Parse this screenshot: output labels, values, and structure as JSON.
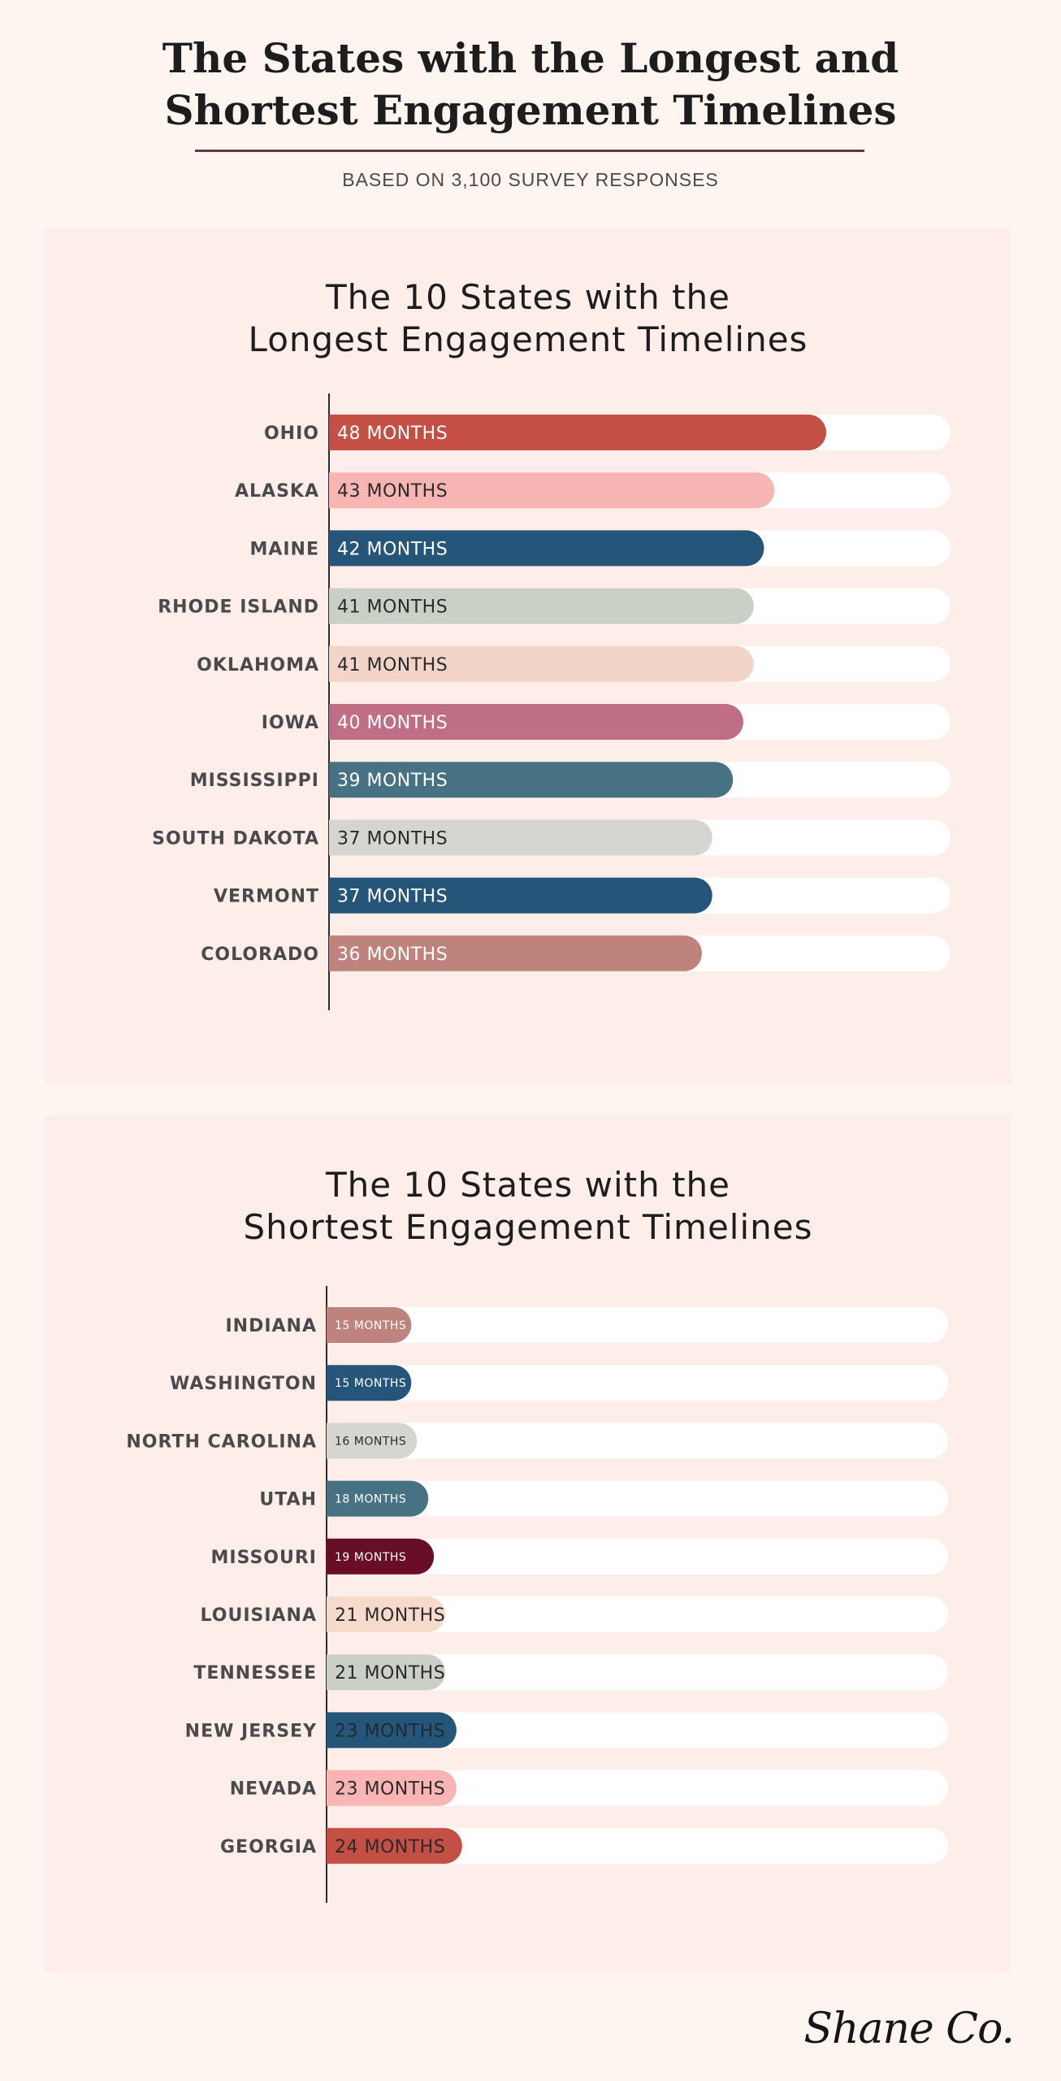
{
  "header": {
    "title_line1": "The States with the Longest and",
    "title_line2": "Shortest Engagement Timelines",
    "subtitle": "BASED ON 3,100 SURVEY RESPONSES"
  },
  "logo": "Shane Co.",
  "chart_data": [
    {
      "type": "bar",
      "orientation": "horizontal",
      "title_line1": "The 10 States with the",
      "title_line2": "Longest Engagement Timelines",
      "categories": [
        "OHIO",
        "ALASKA",
        "MAINE",
        "RHODE ISLAND",
        "OKLAHOMA",
        "IOWA",
        "MISSISSIPPI",
        "SOUTH DAKOTA",
        "VERMONT",
        "COLORADO"
      ],
      "values": [
        48,
        43,
        42,
        41,
        41,
        40,
        39,
        37,
        37,
        36
      ],
      "value_labels": [
        "48 MONTHS",
        "43 MONTHS",
        "42 MONTHS",
        "41 MONTHS",
        "41 MONTHS",
        "40 MONTHS",
        "39 MONTHS",
        "37 MONTHS",
        "37 MONTHS",
        "36 MONTHS"
      ],
      "colors": [
        "#c44f44",
        "#f9b5b3",
        "#255578",
        "#cbd0c7",
        "#f2d5c8",
        "#c06e86",
        "#467283",
        "#d5d6d2",
        "#255578",
        "#bd837c"
      ],
      "label_colors": [
        "#ffffff",
        "#2a2a2a",
        "#ffffff",
        "#2a2a2a",
        "#2a2a2a",
        "#ffffff",
        "#ffffff",
        "#2a2a2a",
        "#ffffff",
        "#ffffff"
      ],
      "xlim": [
        0,
        60
      ],
      "unit": "months"
    },
    {
      "type": "bar",
      "orientation": "horizontal",
      "title_line1": "The 10 States with the",
      "title_line2": "Shortest Engagement Timelines",
      "categories": [
        "INDIANA",
        "WASHINGTON",
        "NORTH CAROLINA",
        "UTAH",
        "MISSOURI",
        "LOUISIANA",
        "TENNESSEE",
        "NEW JERSEY",
        "NEVADA",
        "GEORGIA"
      ],
      "values": [
        15,
        15,
        16,
        18,
        19,
        21,
        21,
        23,
        23,
        24
      ],
      "value_labels": [
        "15 MONTHS",
        "15 MONTHS",
        "16 MONTHS",
        "18 MONTHS",
        "19 MONTHS",
        "21 MONTHS",
        "21 MONTHS",
        "23 MONTHS",
        "23 MONTHS",
        "24 MONTHS"
      ],
      "colors": [
        "#bd837c",
        "#255578",
        "#d5d6d2",
        "#467283",
        "#680f27",
        "#f6dacb",
        "#cbd0c7",
        "#255578",
        "#f9b5b3",
        "#c44f44"
      ],
      "label_colors": [
        "#ffffff",
        "#ffffff",
        "#2a2a2a",
        "#ffffff",
        "#ffffff",
        "#2a2a2a",
        "#2a2a2a",
        "#1e2a36",
        "#2a2a2a",
        "#2a2a2a"
      ],
      "xlim": [
        0,
        110
      ],
      "unit": "months"
    }
  ]
}
